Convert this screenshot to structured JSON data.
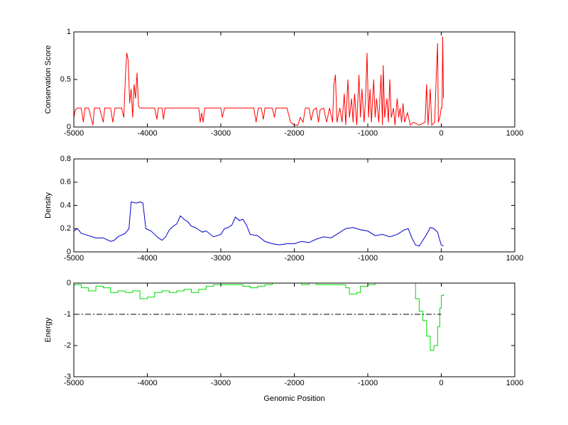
{
  "chart_data": [
    {
      "type": "line",
      "ylabel": "Conservation Score",
      "xlim": [
        -5000,
        1000
      ],
      "xticks": [
        -5000,
        -4000,
        -3000,
        -2000,
        -1000,
        0,
        1000
      ],
      "ylim": [
        0,
        1
      ],
      "yticks": [
        0,
        0.5,
        1
      ],
      "grid": false,
      "step": false,
      "series": [
        {
          "color": "#ff0000",
          "x": [
            -5000,
            -4980,
            -4950,
            -4900,
            -4870,
            -4850,
            -4800,
            -4740,
            -4720,
            -4650,
            -4600,
            -4580,
            -4500,
            -4470,
            -4440,
            -4350,
            -4320,
            -4300,
            -4280,
            -4260,
            -4240,
            -4220,
            -4200,
            -4180,
            -4160,
            -4140,
            -4120,
            -4100,
            -3900,
            -3870,
            -3850,
            -3800,
            -3780,
            -3760,
            -3300,
            -3280,
            -3260,
            -3240,
            -3220,
            -3000,
            -2980,
            -2950,
            -2550,
            -2520,
            -2490,
            -2450,
            -2420,
            -2400,
            -2300,
            -2270,
            -2250,
            -2100,
            -2050,
            -2000,
            -1950,
            -1920,
            -1880,
            -1850,
            -1800,
            -1770,
            -1740,
            -1700,
            -1670,
            -1650,
            -1600,
            -1560,
            -1520,
            -1480,
            -1460,
            -1440,
            -1420,
            -1380,
            -1350,
            -1320,
            -1300,
            -1270,
            -1250,
            -1220,
            -1200,
            -1180,
            -1150,
            -1120,
            -1100,
            -1080,
            -1050,
            -1030,
            -1010,
            -990,
            -970,
            -950,
            -920,
            -900,
            -880,
            -850,
            -820,
            -800,
            -790,
            -770,
            -740,
            -720,
            -700,
            -680,
            -650,
            -630,
            -600,
            -580,
            -560,
            -540,
            -520,
            -500,
            -460,
            -420,
            -380,
            -300,
            -220,
            -200,
            -180,
            -150,
            -130,
            -90,
            -70,
            -50,
            -40,
            -20,
            0,
            10,
            20,
            30
          ],
          "values": [
            0.1,
            0.18,
            0.2,
            0.2,
            0.05,
            0.2,
            0.2,
            0.02,
            0.2,
            0.2,
            0.05,
            0.2,
            0.2,
            0.05,
            0.2,
            0.2,
            0.1,
            0.5,
            0.78,
            0.7,
            0.25,
            0.4,
            0.1,
            0.45,
            0.3,
            0.57,
            0.22,
            0.2,
            0.2,
            0.08,
            0.2,
            0.2,
            0.08,
            0.2,
            0.2,
            0.05,
            0.15,
            0.05,
            0.2,
            0.2,
            0.1,
            0.2,
            0.2,
            0.05,
            0.2,
            0.2,
            0.08,
            0.2,
            0.2,
            0.1,
            0.2,
            0.2,
            0.05,
            0.02,
            0.02,
            0.1,
            0.05,
            0.2,
            0.2,
            0.07,
            0.18,
            0.2,
            0.05,
            0.18,
            0.2,
            0.05,
            0.2,
            0.05,
            0.45,
            0.55,
            0.05,
            0.2,
            0.05,
            0.35,
            0.02,
            0.5,
            0.1,
            0.3,
            0.05,
            0.35,
            0.02,
            0.55,
            0.1,
            0.4,
            0.05,
            0.3,
            0.78,
            0.1,
            0.4,
            0.05,
            0.5,
            0.1,
            0.3,
            0.05,
            0.55,
            0.02,
            0.65,
            0.1,
            0.3,
            0.05,
            0.5,
            0.1,
            0.2,
            0.02,
            0.3,
            0.1,
            0.2,
            0.05,
            0.25,
            0.05,
            0.15,
            0.02,
            0.05,
            0.02,
            0.05,
            0.45,
            0.02,
            0.4,
            0.02,
            0.05,
            0.5,
            0.88,
            0.05,
            0.1,
            0.2,
            0.2,
            0.95,
            0.3
          ]
        }
      ]
    },
    {
      "type": "line",
      "ylabel": "Density",
      "xlim": [
        -5000,
        1000
      ],
      "xticks": [
        -5000,
        -4000,
        -3000,
        -2000,
        -1000,
        0,
        1000
      ],
      "ylim": [
        0,
        0.8
      ],
      "yticks": [
        0,
        0.2,
        0.4,
        0.6,
        0.8
      ],
      "grid": false,
      "step": false,
      "series": [
        {
          "color": "#0000cc",
          "x": [
            -5000,
            -4950,
            -4900,
            -4800,
            -4700,
            -4600,
            -4500,
            -4450,
            -4400,
            -4300,
            -4250,
            -4220,
            -4150,
            -4100,
            -4060,
            -4020,
            -3950,
            -3900,
            -3850,
            -3800,
            -3750,
            -3700,
            -3650,
            -3600,
            -3550,
            -3500,
            -3450,
            -3400,
            -3350,
            -3300,
            -3250,
            -3200,
            -3100,
            -3000,
            -2950,
            -2900,
            -2850,
            -2800,
            -2750,
            -2700,
            -2650,
            -2600,
            -2500,
            -2400,
            -2300,
            -2200,
            -2100,
            -2000,
            -1900,
            -1800,
            -1700,
            -1600,
            -1500,
            -1400,
            -1300,
            -1200,
            -1100,
            -1000,
            -900,
            -800,
            -700,
            -600,
            -500,
            -450,
            -400,
            -350,
            -300,
            -250,
            -200,
            -150,
            -100,
            -50,
            -20,
            0,
            30
          ],
          "values": [
            0.18,
            0.2,
            0.16,
            0.14,
            0.12,
            0.12,
            0.09,
            0.1,
            0.13,
            0.16,
            0.2,
            0.43,
            0.42,
            0.43,
            0.42,
            0.2,
            0.18,
            0.15,
            0.12,
            0.1,
            0.13,
            0.19,
            0.22,
            0.24,
            0.31,
            0.28,
            0.26,
            0.22,
            0.21,
            0.19,
            0.17,
            0.18,
            0.13,
            0.15,
            0.2,
            0.21,
            0.23,
            0.3,
            0.27,
            0.28,
            0.23,
            0.15,
            0.14,
            0.09,
            0.07,
            0.06,
            0.07,
            0.07,
            0.09,
            0.08,
            0.11,
            0.13,
            0.12,
            0.16,
            0.2,
            0.21,
            0.19,
            0.18,
            0.14,
            0.15,
            0.13,
            0.15,
            0.19,
            0.2,
            0.12,
            0.06,
            0.05,
            0.1,
            0.15,
            0.21,
            0.2,
            0.17,
            0.1,
            0.06,
            0.05
          ]
        }
      ]
    },
    {
      "type": "line",
      "ylabel": "Energy",
      "xlabel": "Genomic Position",
      "xlim": [
        -5000,
        1000
      ],
      "xticks": [
        -5000,
        -4000,
        -3000,
        -2000,
        -1000,
        0,
        1000
      ],
      "ylim": [
        -3,
        0
      ],
      "yticks": [
        -3,
        -2,
        -1,
        0
      ],
      "grid": false,
      "step": true,
      "series": [
        {
          "color": "#00dd00",
          "x": [
            -5000,
            -4900,
            -4800,
            -4700,
            -4600,
            -4500,
            -4400,
            -4300,
            -4200,
            -4100,
            -4000,
            -3900,
            -3800,
            -3700,
            -3600,
            -3500,
            -3400,
            -3300,
            -3200,
            -3100,
            -3000,
            -2800,
            -2700,
            -2600,
            -2500,
            -2400,
            -2300,
            -2000,
            -1900,
            -1800,
            -1700,
            -1400,
            -1300,
            -1250,
            -1150,
            -1100,
            -1000,
            -900,
            -400,
            -350,
            -300,
            -250,
            -200,
            -150,
            -100,
            -50,
            -20,
            0,
            30
          ],
          "values": [
            -0.05,
            -0.15,
            -0.25,
            -0.1,
            -0.15,
            -0.3,
            -0.25,
            -0.3,
            -0.25,
            -0.5,
            -0.45,
            -0.3,
            -0.25,
            -0.3,
            -0.25,
            -0.2,
            -0.3,
            -0.2,
            -0.1,
            -0.05,
            -0.05,
            -0.05,
            -0.1,
            -0.15,
            -0.1,
            -0.05,
            0,
            0,
            -0.05,
            0,
            -0.05,
            -0.05,
            -0.15,
            -0.35,
            -0.3,
            -0.1,
            -0.05,
            0,
            0,
            -0.5,
            -0.9,
            -1.2,
            -1.7,
            -2.15,
            -2.0,
            -1.4,
            -0.8,
            -0.4,
            -0.35
          ]
        },
        {
          "color": "#000000",
          "dash": "8 3 2 3",
          "x": [
            -5000,
            0
          ],
          "values": [
            -1,
            -1
          ]
        }
      ]
    }
  ]
}
